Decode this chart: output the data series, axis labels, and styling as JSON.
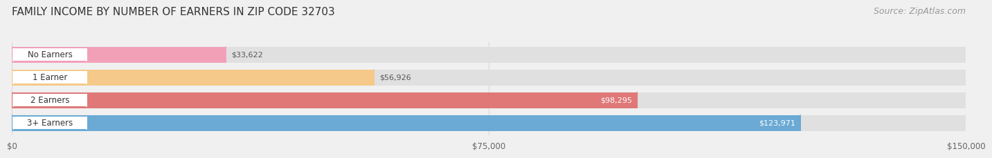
{
  "title": "FAMILY INCOME BY NUMBER OF EARNERS IN ZIP CODE 32703",
  "source": "Source: ZipAtlas.com",
  "categories": [
    "No Earners",
    "1 Earner",
    "2 Earners",
    "3+ Earners"
  ],
  "values": [
    33622,
    56926,
    98295,
    123971
  ],
  "bar_colors": [
    "#f2a0b8",
    "#f5c98a",
    "#e07878",
    "#6aaad4"
  ],
  "label_colors": [
    "#555555",
    "#555555",
    "#ffffff",
    "#ffffff"
  ],
  "xlim": [
    0,
    150000
  ],
  "xticks": [
    0,
    75000,
    150000
  ],
  "xtick_labels": [
    "$0",
    "$75,000",
    "$150,000"
  ],
  "value_labels": [
    "$33,622",
    "$56,926",
    "$98,295",
    "$123,971"
  ],
  "background_color": "#f0f0f0",
  "bar_bg_color": "#e0e0e0",
  "title_fontsize": 11,
  "source_fontsize": 9
}
